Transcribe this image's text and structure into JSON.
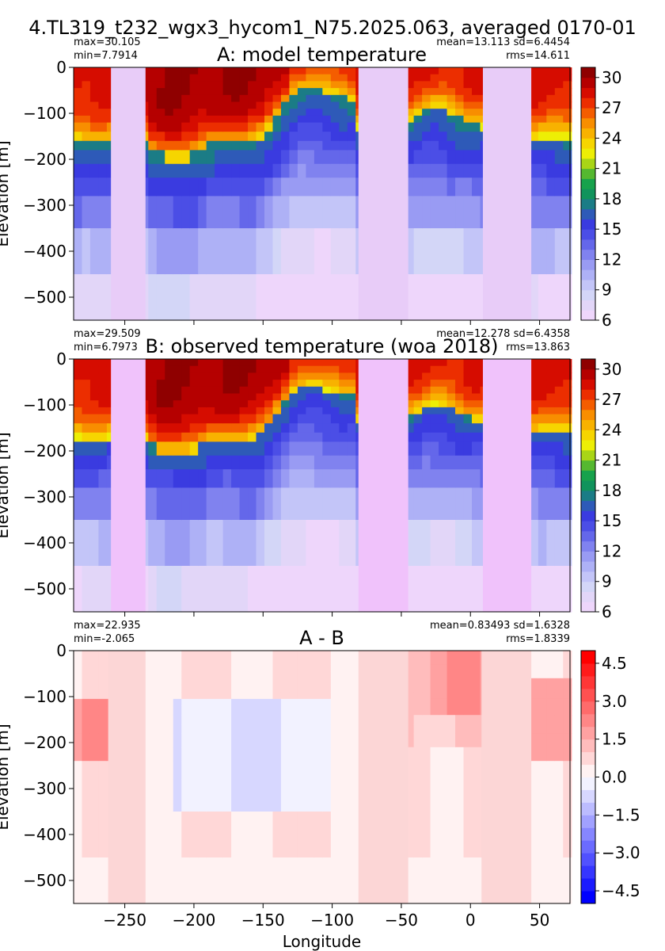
{
  "figure": {
    "suptitle": "4.TL319_t232_wgx3_hycom1_N75.2025.063, averaged 0170-01"
  },
  "chart_data": [
    {
      "type": "heatmap",
      "title": "A: model temperature",
      "ylabel": "Elevation [m]",
      "xlabel": "",
      "xlim": [
        -287,
        72
      ],
      "ylim": [
        -550,
        0
      ],
      "xticks": [
        -250,
        -200,
        -150,
        -100,
        -50,
        0,
        50
      ],
      "xtick_labels_visible": false,
      "yticks": [
        0,
        -100,
        -200,
        -300,
        -400,
        -500
      ],
      "ytick_labels": [
        "0",
        "−100",
        "−200",
        "−300",
        "−400",
        "−500"
      ],
      "stats_left": [
        "max=30.105",
        "min=7.7914"
      ],
      "stats_right": [
        "mean=13.113 sd=6.4454",
        "rms=14.611"
      ],
      "colorbar": {
        "min": 6,
        "max": 31,
        "step": 1,
        "ticks": [
          "6",
          "9",
          "12",
          "15",
          "18",
          "21",
          "24",
          "27",
          "30"
        ],
        "tick_values": [
          6,
          9,
          12,
          15,
          18,
          21,
          24,
          27,
          30
        ]
      },
      "land_color": "#e8ccf8",
      "land_x_ranges": [
        [
          -260,
          -235
        ],
        [
          -81,
          -45
        ],
        [
          9,
          44
        ]
      ]
    },
    {
      "type": "heatmap",
      "title": "B: observed temperature (woa 2018)",
      "ylabel": "Elevation [m]",
      "xlabel": "",
      "xlim": [
        -287,
        72
      ],
      "ylim": [
        -550,
        0
      ],
      "xticks": [
        -250,
        -200,
        -150,
        -100,
        -50,
        0,
        50
      ],
      "xtick_labels_visible": false,
      "yticks": [
        0,
        -100,
        -200,
        -300,
        -400,
        -500
      ],
      "ytick_labels": [
        "0",
        "−100",
        "−200",
        "−300",
        "−400",
        "−500"
      ],
      "stats_left": [
        "max=29.509",
        "min=6.7973"
      ],
      "stats_right": [
        "mean=12.278 sd=6.4358",
        "rms=13.863"
      ],
      "colorbar": {
        "min": 6,
        "max": 31,
        "step": 1,
        "ticks": [
          "6",
          "9",
          "12",
          "15",
          "18",
          "21",
          "24",
          "27",
          "30"
        ],
        "tick_values": [
          6,
          9,
          12,
          15,
          18,
          21,
          24,
          27,
          30
        ]
      },
      "land_color": "#f0c2fb",
      "land_x_ranges": [
        [
          -260,
          -235
        ],
        [
          -81,
          -45
        ],
        [
          9,
          44
        ]
      ]
    },
    {
      "type": "heatmap",
      "title": "A - B",
      "ylabel": "Elevation [m]",
      "xlabel": "Longitude",
      "xlim": [
        -287,
        72
      ],
      "ylim": [
        -550,
        0
      ],
      "xticks": [
        -250,
        -200,
        -150,
        -100,
        -50,
        0,
        50
      ],
      "xtick_labels": [
        "−250",
        "−200",
        "−150",
        "−100",
        "−50",
        "0",
        "50"
      ],
      "xtick_labels_visible": true,
      "yticks": [
        0,
        -100,
        -200,
        -300,
        -400,
        -500
      ],
      "ytick_labels": [
        "0",
        "−100",
        "−200",
        "−300",
        "−400",
        "−500"
      ],
      "stats_left": [
        "max=22.935",
        "min=-2.065"
      ],
      "stats_right": [
        "mean=0.83493 sd=1.6328",
        "rms=1.8339"
      ],
      "colorbar": {
        "min": -5,
        "max": 5,
        "step": 0.5,
        "ticks": [
          "−4.5",
          "−3.0",
          "−1.5",
          "0.0",
          "1.5",
          "3.0",
          "4.5"
        ],
        "tick_values": [
          -4.5,
          -3.0,
          -1.5,
          0.0,
          1.5,
          3.0,
          4.5
        ]
      },
      "land_color": "#fcd6d6",
      "land_x_ranges": [
        [
          -262,
          -235
        ],
        [
          -81,
          -45
        ],
        [
          8,
          44
        ]
      ]
    }
  ]
}
